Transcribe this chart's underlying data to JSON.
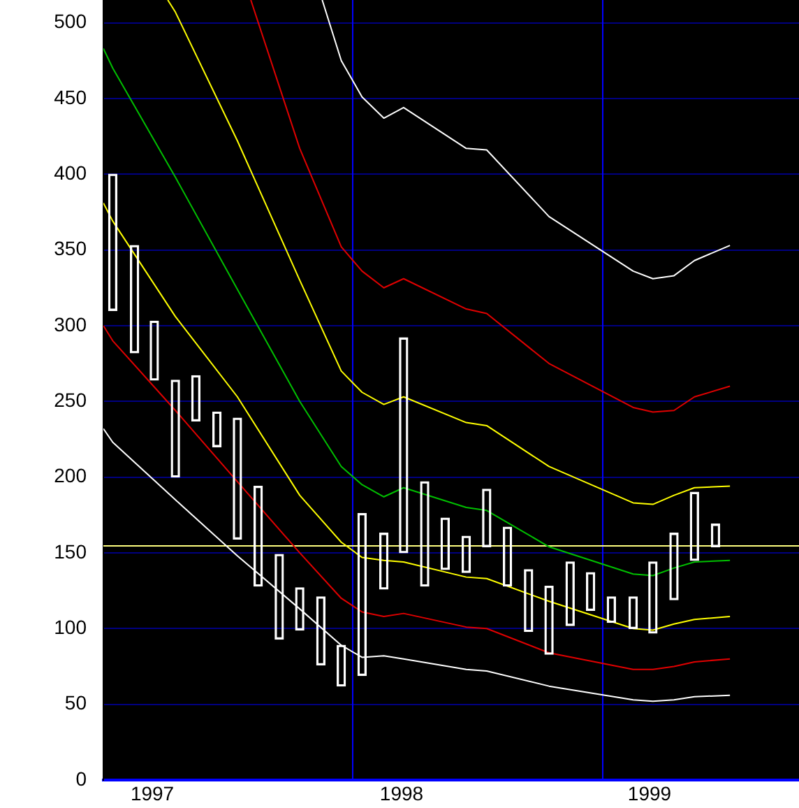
{
  "chart_data": {
    "type": "candlestick",
    "x": [
      "1997-01-15",
      "1997-02-15",
      "1997-03-15",
      "1997-04-15",
      "1997-05-15",
      "1997-06-15",
      "1997-07-15",
      "1997-08-15",
      "1997-09-15",
      "1997-10-15",
      "1997-11-15",
      "1997-12-15",
      "1998-01-15",
      "1998-02-15",
      "1998-03-15",
      "1998-04-15",
      "1998-05-15",
      "1998-06-15",
      "1998-07-15",
      "1998-08-15",
      "1998-09-15",
      "1998-10-15",
      "1998-11-15",
      "1998-12-15",
      "1999-01-15",
      "1999-02-15",
      "1999-03-15",
      "1999-04-15",
      "1999-05-15",
      "1999-06-15"
    ],
    "ohlc": [
      [
        310,
        400,
        310,
        400
      ],
      [
        282,
        353,
        282,
        353
      ],
      [
        264,
        303,
        264,
        303
      ],
      [
        200,
        264,
        200,
        264
      ],
      [
        237,
        267,
        237,
        267
      ],
      [
        220,
        243,
        220,
        243
      ],
      [
        159,
        239,
        159,
        239
      ],
      [
        128,
        194,
        128,
        194
      ],
      [
        93,
        149,
        93,
        149
      ],
      [
        99,
        127,
        99,
        127
      ],
      [
        76,
        121,
        76,
        121
      ],
      [
        62,
        89,
        62,
        89
      ],
      [
        69,
        176,
        69,
        176
      ],
      [
        126,
        163,
        126,
        163
      ],
      [
        150,
        292,
        150,
        292
      ],
      [
        128,
        197,
        128,
        197
      ],
      [
        139,
        173,
        139,
        173
      ],
      [
        137,
        161,
        137,
        161
      ],
      [
        154,
        192,
        154,
        192
      ],
      [
        128,
        167,
        128,
        167
      ],
      [
        98,
        139,
        98,
        139
      ],
      [
        83,
        128,
        83,
        128
      ],
      [
        102,
        144,
        102,
        144
      ],
      [
        112,
        137,
        112,
        137
      ],
      [
        104,
        121,
        104,
        121
      ],
      [
        100,
        121,
        100,
        121
      ],
      [
        97,
        144,
        97,
        144
      ],
      [
        119,
        163,
        119,
        163
      ],
      [
        145,
        190,
        145,
        190
      ],
      [
        154,
        169,
        154,
        169
      ]
    ],
    "color": "#ffffff",
    "series": [
      {
        "type": "line",
        "color": "#ffffff",
        "x": [
          "1997-11-17",
          "1997-12-15",
          "1998-01-15",
          "1998-02-15",
          "1998-03-15",
          "1998-06-15",
          "1998-07-15",
          "1998-10-15",
          "1999-02-15",
          "1999-03-15",
          "1999-04-15",
          "1999-05-15",
          "1999-07-06"
        ],
        "values": [
          515,
          475,
          451,
          437,
          444,
          417,
          416,
          372,
          336,
          331,
          333,
          343,
          353
        ]
      },
      {
        "type": "line",
        "color": "#e00000",
        "x": [
          "1997-08-04",
          "1997-10-15",
          "1997-12-15",
          "1998-01-15",
          "1998-02-15",
          "1998-03-15",
          "1998-06-15",
          "1998-07-15",
          "1998-10-15",
          "1999-02-15",
          "1999-03-15",
          "1999-04-15",
          "1999-05-15",
          "1999-07-06"
        ],
        "values": [
          515,
          417,
          352,
          336,
          325,
          331,
          311,
          308,
          275,
          246,
          243,
          244,
          253,
          260
        ]
      },
      {
        "type": "line",
        "color": "#ffff00",
        "x": [
          "1997-04-04",
          "1997-04-15",
          "1997-07-15",
          "1997-10-15",
          "1997-12-15",
          "1998-01-15",
          "1998-02-15",
          "1998-03-15",
          "1998-06-15",
          "1998-07-15",
          "1998-10-15",
          "1999-02-15",
          "1999-03-15",
          "1999-04-15",
          "1999-05-15",
          "1999-07-06"
        ],
        "values": [
          515,
          507,
          422,
          330,
          270,
          256,
          248,
          253,
          236,
          234,
          207,
          183,
          182,
          188,
          193,
          194
        ]
      },
      {
        "type": "line",
        "color": "#00c000",
        "x": [
          "1997-01-01",
          "1997-01-15",
          "1997-04-15",
          "1997-07-15",
          "1997-10-15",
          "1997-12-15",
          "1998-01-15",
          "1998-02-15",
          "1998-03-15",
          "1998-06-15",
          "1998-07-15",
          "1998-10-15",
          "1999-02-15",
          "1999-03-15",
          "1999-04-15",
          "1999-05-15",
          "1999-07-06"
        ],
        "values": [
          483,
          470,
          398,
          324,
          250,
          207,
          195,
          187,
          193,
          180,
          178,
          154,
          136,
          135,
          140,
          144,
          145
        ]
      },
      {
        "type": "line",
        "color": "#ffff00",
        "x": [
          "1997-01-01",
          "1997-01-15",
          "1997-04-15",
          "1997-07-15",
          "1997-10-15",
          "1997-12-15",
          "1998-01-15",
          "1998-02-15",
          "1998-03-15",
          "1998-06-15",
          "1998-07-15",
          "1998-10-15",
          "1999-02-15",
          "1999-03-15",
          "1999-04-15",
          "1999-05-15",
          "1999-07-06"
        ],
        "values": [
          381,
          369,
          306,
          253,
          188,
          157,
          147,
          145,
          144,
          134,
          133,
          118,
          100,
          99,
          103,
          106,
          108
        ]
      },
      {
        "type": "line",
        "color": "#e00000",
        "x": [
          "1997-01-01",
          "1997-01-15",
          "1997-04-15",
          "1997-07-15",
          "1997-10-15",
          "1997-12-15",
          "1998-01-15",
          "1998-02-15",
          "1998-03-15",
          "1998-06-15",
          "1998-07-15",
          "1998-10-15",
          "1999-02-15",
          "1999-03-15",
          "1999-04-15",
          "1999-05-15",
          "1999-07-06"
        ],
        "values": [
          300,
          290,
          244,
          197,
          150,
          120,
          111,
          108,
          110,
          101,
          100,
          84,
          73,
          73,
          75,
          78,
          80
        ]
      },
      {
        "type": "line",
        "color": "#ffffff",
        "x": [
          "1997-01-01",
          "1997-01-15",
          "1997-04-15",
          "1997-07-15",
          "1997-10-15",
          "1997-12-15",
          "1998-01-15",
          "1998-02-15",
          "1998-03-15",
          "1998-06-15",
          "1998-07-15",
          "1998-10-15",
          "1999-02-15",
          "1999-03-15",
          "1999-04-15",
          "1999-05-15",
          "1999-07-06"
        ],
        "values": [
          232,
          223,
          185,
          148,
          113,
          89,
          81,
          82,
          80,
          73,
          72,
          62,
          53,
          52,
          53,
          55,
          56
        ]
      }
    ],
    "xlim": [
      "1997-01-01",
      "1999-10-16"
    ],
    "xticks": [
      {
        "value": "1997-03-12",
        "label": "1997"
      },
      {
        "value": "1998-03-12",
        "label": "1998"
      },
      {
        "value": "1999-03-10",
        "label": "1999"
      }
    ],
    "ylim": [
      0,
      515
    ],
    "yticks": [
      0,
      50,
      100,
      150,
      200,
      250,
      300,
      350,
      400,
      450,
      500
    ],
    "grid": "y",
    "ref_lines": [
      {
        "axis": "x",
        "value": "1998-01-01",
        "color": "#0000ff"
      },
      {
        "axis": "x",
        "value": "1999-01-01",
        "color": "#0000ff"
      },
      {
        "axis": "y",
        "value": 155,
        "color": "#ffff80"
      }
    ],
    "legend": false
  }
}
